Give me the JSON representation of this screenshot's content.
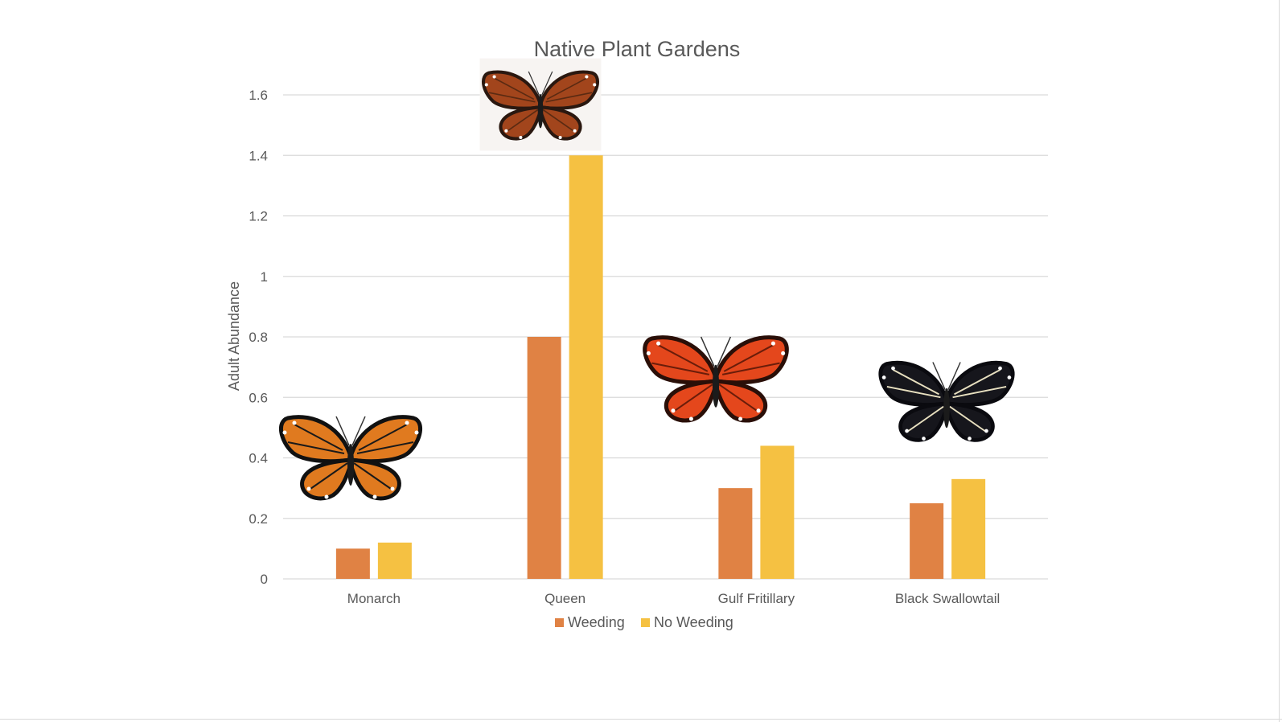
{
  "colors": {
    "weeding": "#E08244",
    "no_weeding": "#F5C142",
    "grid": "#d9d9d9",
    "text": "#595959",
    "title": "#595959"
  },
  "chart_data": {
    "type": "bar",
    "title": "Native Plant Gardens",
    "xlabel": "",
    "ylabel": "Adult Abundance",
    "ylim": [
      0,
      1.6
    ],
    "yticks": [
      0,
      0.2,
      0.4,
      0.6,
      0.8,
      1,
      1.2,
      1.4,
      1.6
    ],
    "ytick_labels": [
      "0",
      "0.2",
      "0.4",
      "0.6",
      "0.8",
      "1",
      "1.2",
      "1.4",
      "1.6"
    ],
    "grid": true,
    "legend_position": "bottom",
    "categories": [
      "Monarch",
      "Queen",
      "Gulf Fritillary",
      "Black Swallowtail"
    ],
    "series": [
      {
        "name": "Weeding",
        "values": [
          0.1,
          0.8,
          0.3,
          0.25
        ]
      },
      {
        "name": "No Weeding",
        "values": [
          0.12,
          1.4,
          0.44,
          0.33
        ]
      }
    ],
    "annotations": [
      {
        "category": "Monarch",
        "icon": "monarch-butterfly-icon"
      },
      {
        "category": "Queen",
        "icon": "queen-butterfly-icon"
      },
      {
        "category": "Gulf Fritillary",
        "icon": "gulf-fritillary-butterfly-icon"
      },
      {
        "category": "Black Swallowtail",
        "icon": "black-swallowtail-butterfly-icon"
      }
    ]
  }
}
